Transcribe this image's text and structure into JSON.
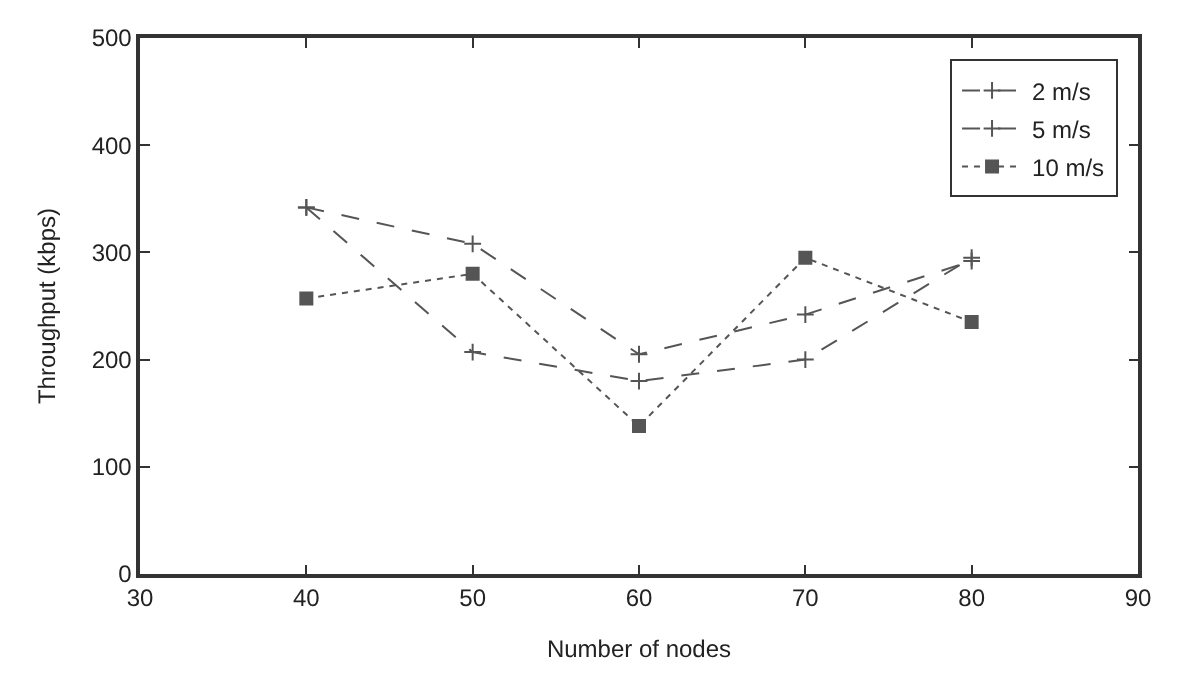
{
  "chart_data": {
    "type": "line",
    "xlabel": "Number of nodes",
    "ylabel": "Throughput (kbps)",
    "x": [
      40,
      50,
      60,
      70,
      80
    ],
    "series": [
      {
        "name": "2 m/s",
        "color": "#555555",
        "marker": "cross",
        "line_style": "dashed",
        "values": [
          342,
          308,
          205,
          242,
          292
        ]
      },
      {
        "name": "5 m/s",
        "color": "#555555",
        "marker": "cross",
        "line_style": "dashed",
        "values": [
          342,
          207,
          180,
          200,
          295
        ]
      },
      {
        "name": "10 m/s",
        "color": "#555555",
        "marker": "square",
        "line_style": "dotted",
        "values": [
          257,
          280,
          138,
          295,
          235
        ]
      }
    ],
    "xlim": [
      30,
      90
    ],
    "xticks": [
      30,
      40,
      50,
      60,
      70,
      80,
      90
    ],
    "ylim": [
      0,
      500
    ],
    "yticks": [
      0,
      100,
      200,
      300,
      400,
      500
    ],
    "legend": "top right"
  }
}
